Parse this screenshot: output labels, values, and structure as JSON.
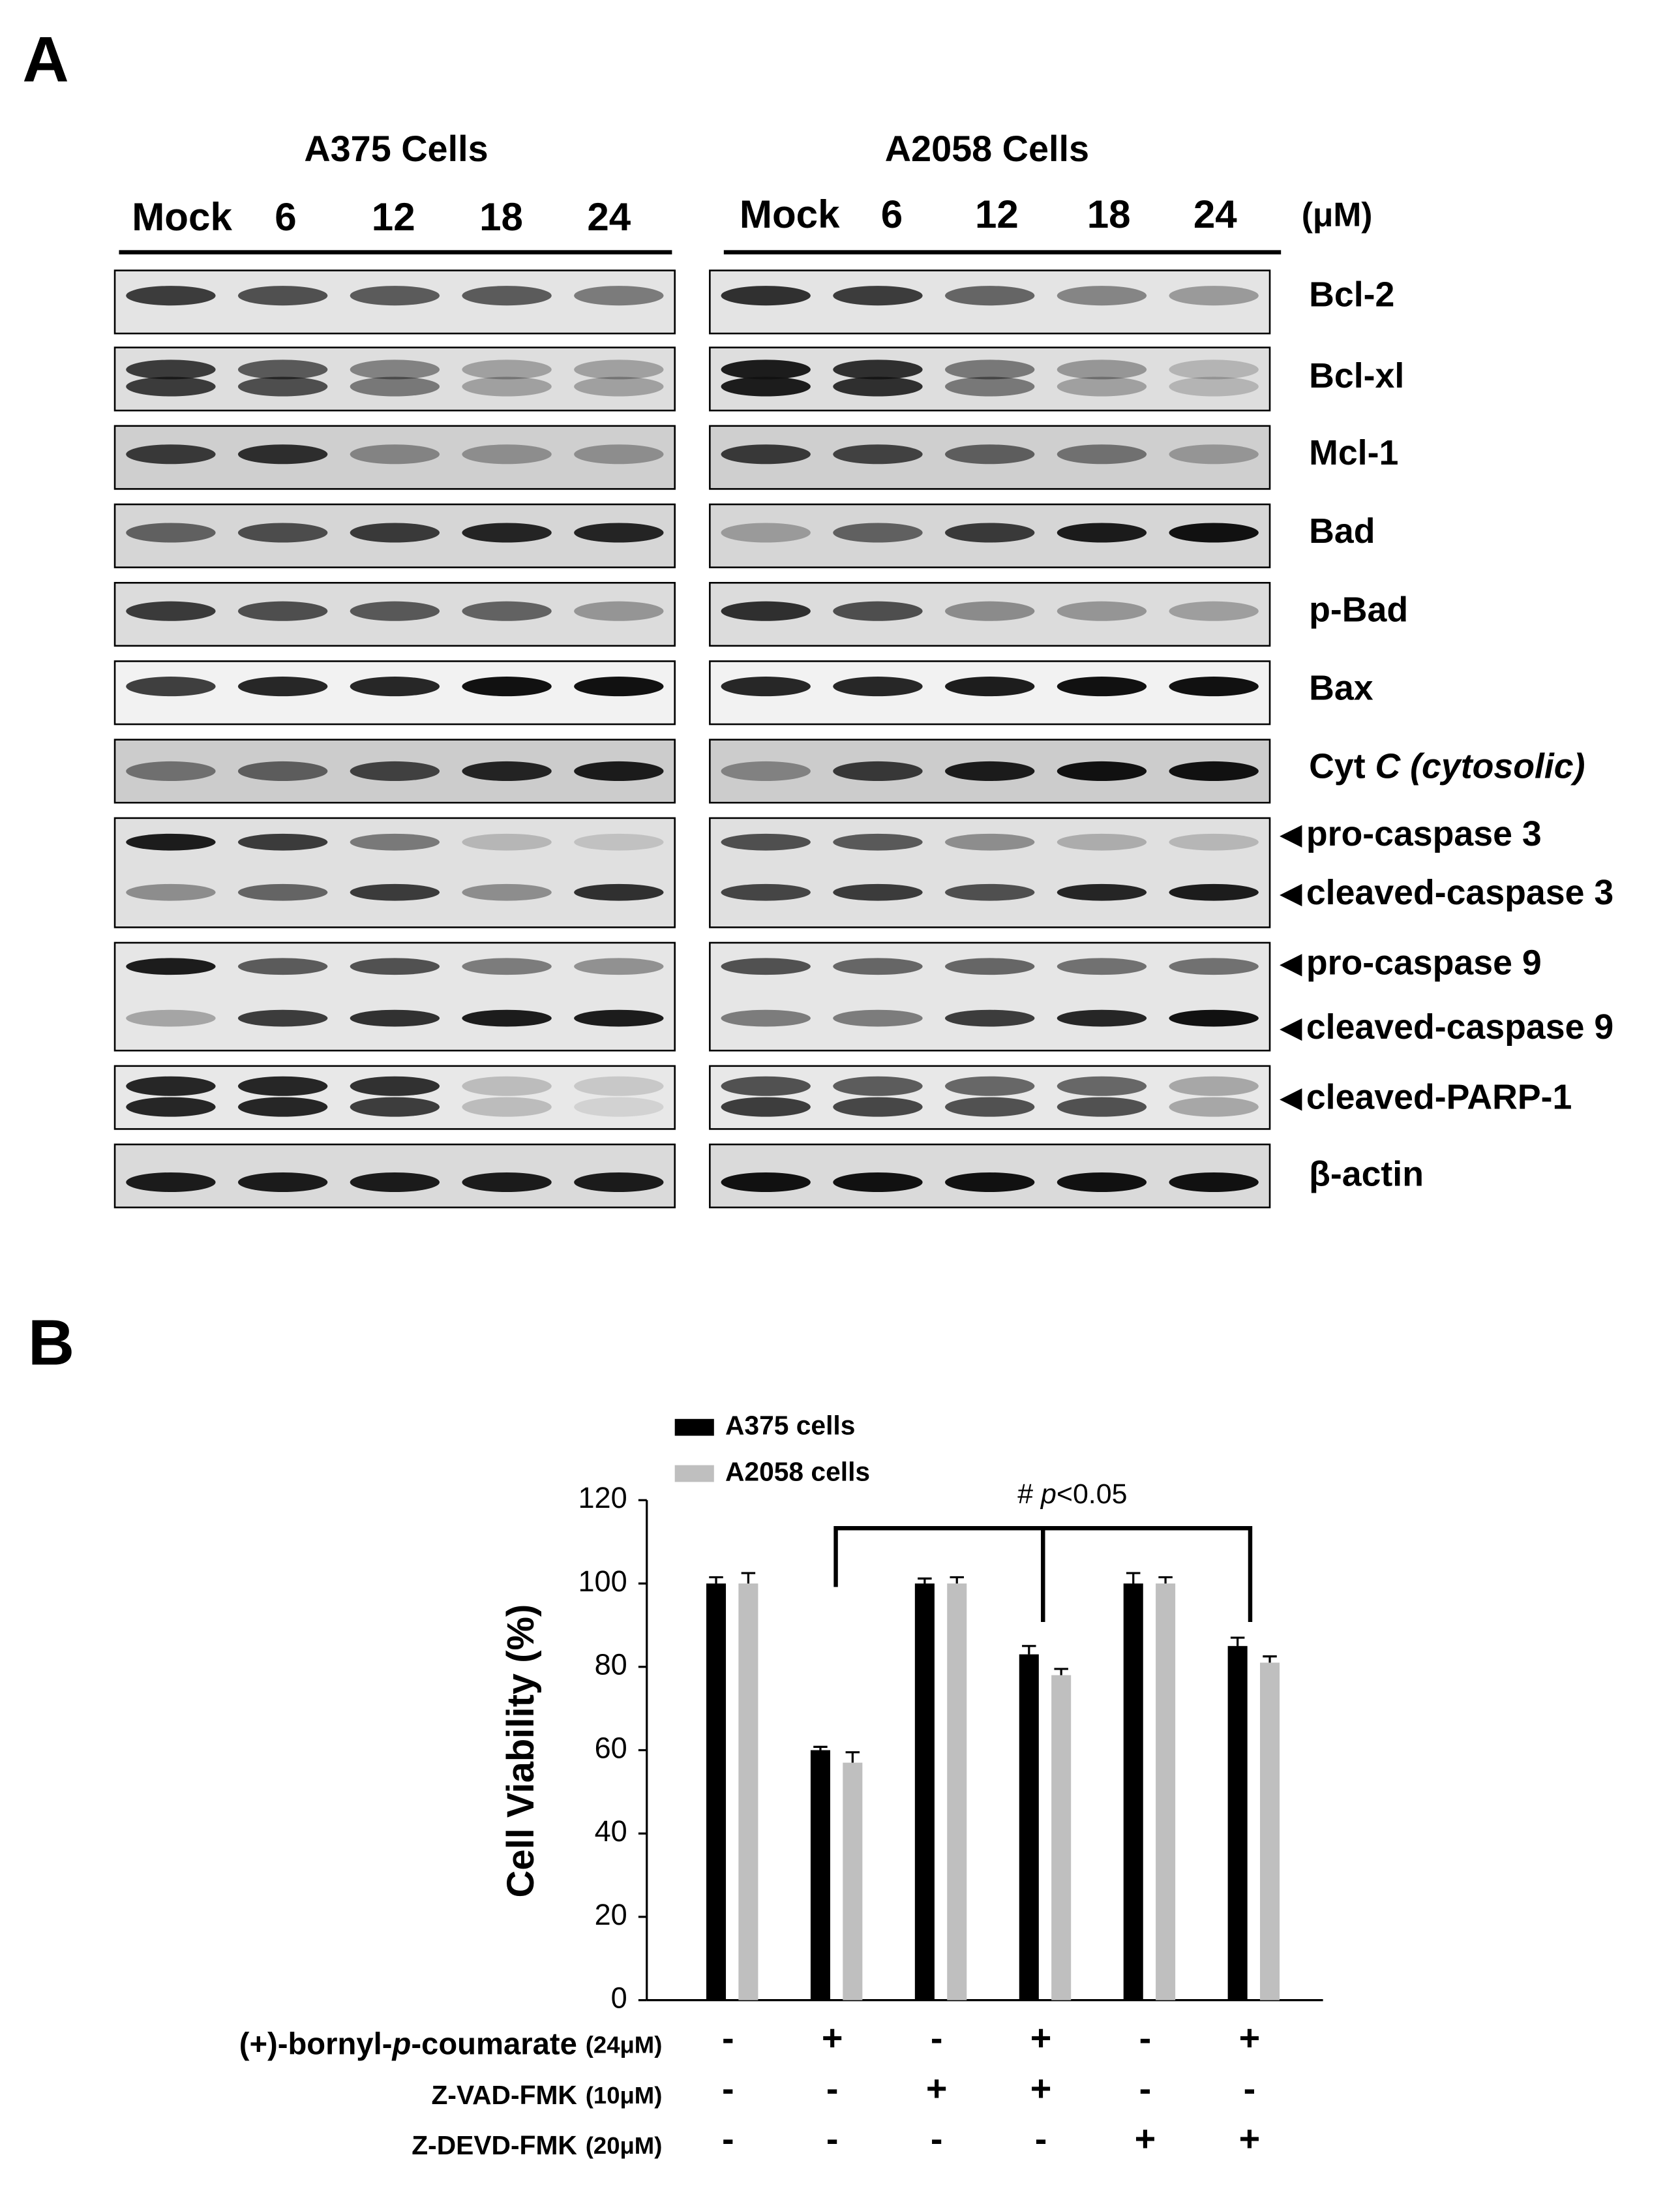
{
  "panel_a": {
    "label": "A",
    "cell_lines": [
      "A375 Cells",
      "A2058 Cells"
    ],
    "doses": [
      [
        "Mock",
        "6",
        "12",
        "18",
        "24"
      ],
      [
        "Mock",
        "6",
        "12",
        "18",
        "24"
      ]
    ],
    "unit": "(μM)",
    "blots": [
      {
        "labels": [
          [
            "Bcl-2"
          ]
        ]
      },
      {
        "labels": [
          [
            "Bcl-xl"
          ]
        ]
      },
      {
        "labels": [
          [
            "Mcl-1"
          ]
        ]
      },
      {
        "labels": [
          [
            "Bad"
          ]
        ]
      },
      {
        "labels": [
          [
            "p-Bad"
          ]
        ]
      },
      {
        "labels": [
          [
            "Bax"
          ]
        ]
      },
      {
        "labels": [
          [
            "Cyt ",
            "C (cytosolic)"
          ]
        ]
      },
      {
        "labels": [
          [
            "pro-caspase 3"
          ],
          [
            "cleaved-caspase 3"
          ]
        ],
        "arrows": true
      },
      {
        "labels": [
          [
            "pro-caspase 9"
          ],
          [
            "cleaved-caspase 9"
          ]
        ],
        "arrows": true
      },
      {
        "labels": [
          [
            "cleaved-PARP-1"
          ]
        ],
        "arrows": true
      },
      {
        "labels": [
          [
            "β-actin"
          ]
        ]
      }
    ]
  },
  "chart_data": {
    "type": "bar",
    "label": "B",
    "y_label": "Cell Viability (%)",
    "ylim": [
      0,
      120
    ],
    "yticks": [
      0,
      20,
      40,
      60,
      80,
      100,
      120
    ],
    "categories": [
      null,
      null,
      null,
      null,
      null,
      null
    ],
    "series": [
      {
        "name": "A375 cells",
        "color": "#000000",
        "values": [
          100,
          60,
          100,
          83,
          100,
          85
        ],
        "errors": [
          1.5,
          0.8,
          1.2,
          2,
          2.5,
          2
        ]
      },
      {
        "name": "A2058 cells",
        "color": "#bfbfbf",
        "values": [
          100,
          57,
          100,
          78,
          100,
          81
        ],
        "errors": [
          2.5,
          2.5,
          1.5,
          1.5,
          1.5,
          1.5
        ]
      }
    ],
    "annotation": [
      "# ",
      "p",
      "<0.05"
    ],
    "treatments": [
      {
        "name": [
          "(+)-bornyl-",
          "p",
          "-coumarate"
        ],
        "dose": "(24μM)",
        "signs": [
          "-",
          "+",
          "-",
          "+",
          "-",
          "+"
        ]
      },
      {
        "name": [
          "Z-VAD-FMK"
        ],
        "dose": "(10μM)",
        "signs": [
          "-",
          "-",
          "+",
          "+",
          "-",
          "-"
        ]
      },
      {
        "name": [
          "Z-DEVD-FMK"
        ],
        "dose": "(20μM)",
        "signs": [
          "-",
          "-",
          "-",
          "-",
          "+",
          "+"
        ]
      }
    ]
  }
}
